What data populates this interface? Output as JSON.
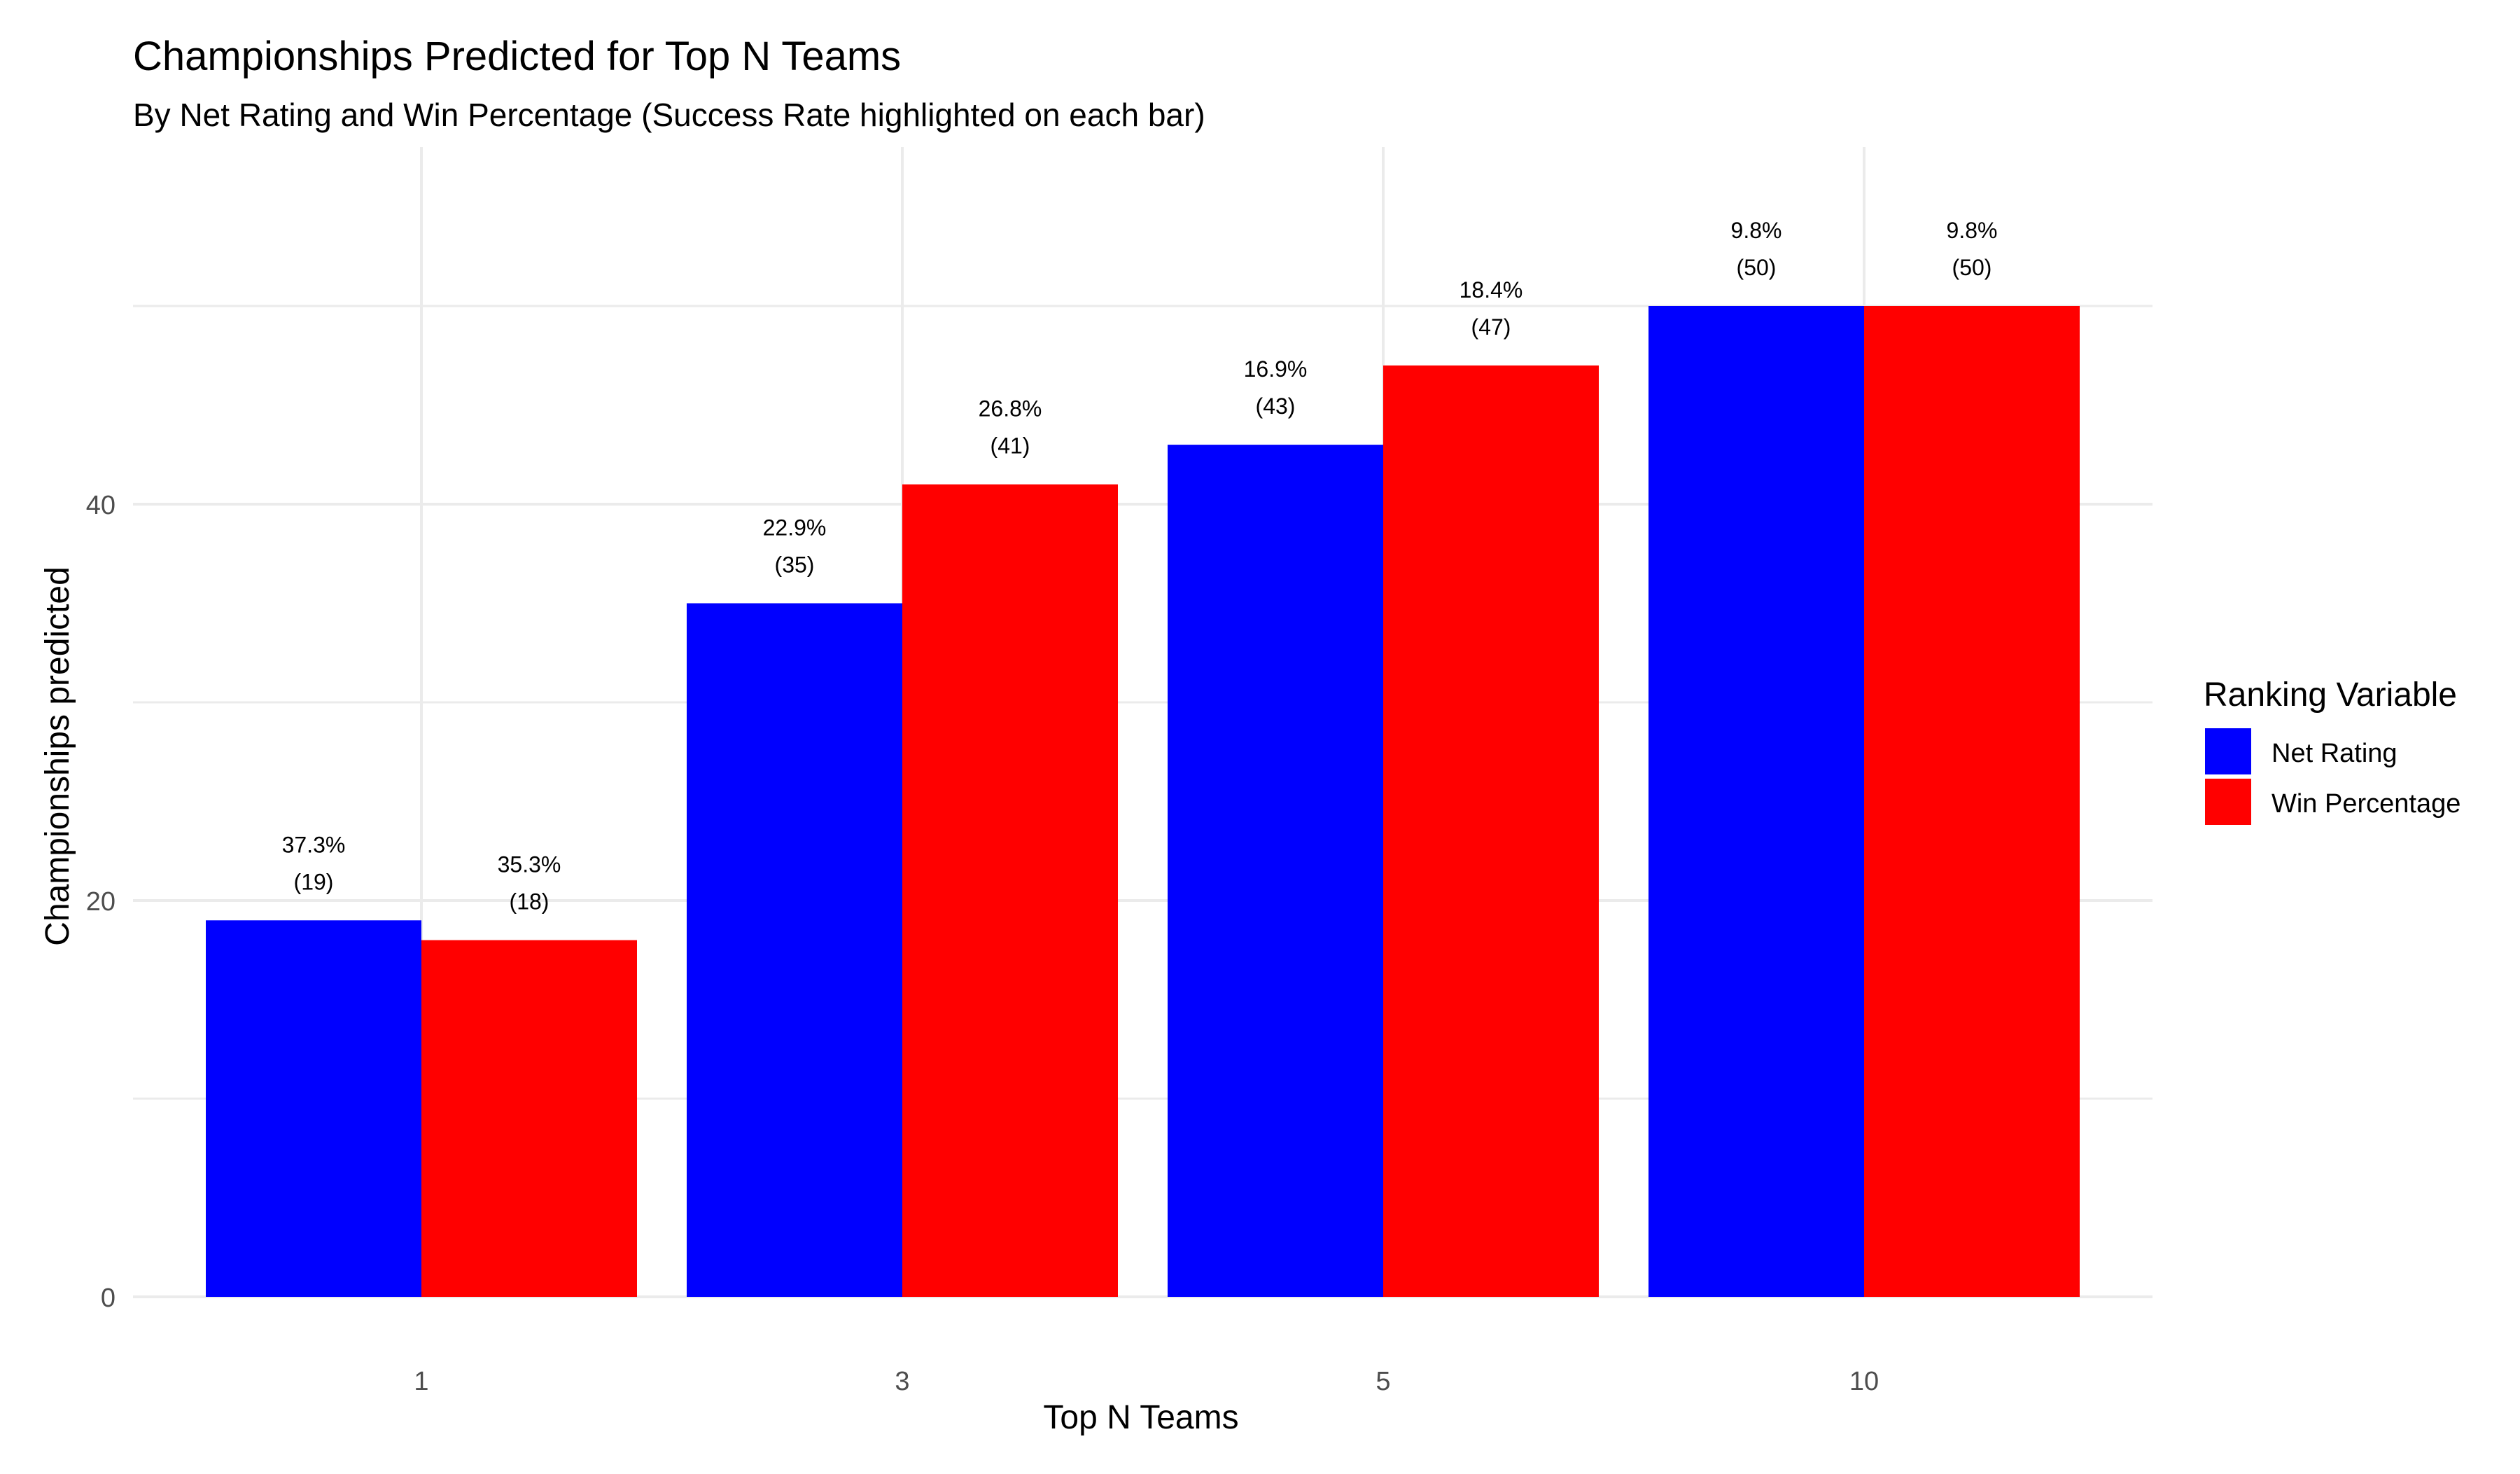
{
  "chart_data": {
    "type": "bar",
    "title": "Championships Predicted for Top N Teams",
    "subtitle": "By Net Rating and Win Percentage (Success Rate highlighted on each bar)",
    "xlabel": "Top N Teams",
    "ylabel": "Championships predicted",
    "categories": [
      "1",
      "3",
      "5",
      "10"
    ],
    "ylim": [
      0,
      55
    ],
    "yticks": [
      0,
      20,
      40
    ],
    "grid": true,
    "legend": {
      "title": "Ranking Variable",
      "position": "right"
    },
    "series": [
      {
        "name": "Net Rating",
        "color": "#0000FF",
        "values": [
          19,
          35,
          43,
          50
        ],
        "rate_labels": [
          "37.3%",
          "22.9%",
          "16.9%",
          "9.8%"
        ],
        "count_labels": [
          "(19)",
          "(35)",
          "(43)",
          "(50)"
        ]
      },
      {
        "name": "Win Percentage",
        "color": "#FF0000",
        "values": [
          18,
          41,
          47,
          50
        ],
        "rate_labels": [
          "35.3%",
          "26.8%",
          "18.4%",
          "9.8%"
        ],
        "count_labels": [
          "(18)",
          "(41)",
          "(47)",
          "(50)"
        ]
      }
    ]
  }
}
